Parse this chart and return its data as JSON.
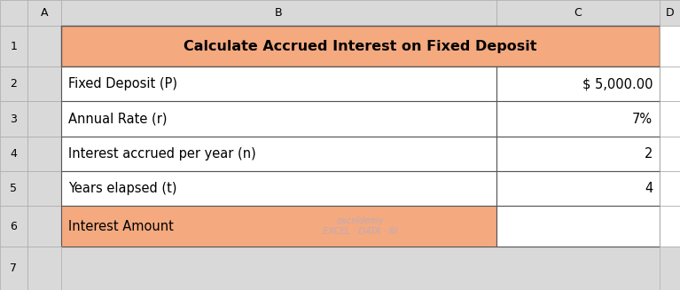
{
  "title": "Calculate Accrued Interest on Fixed Deposit",
  "rows": [
    {
      "label": "Fixed Deposit (P)",
      "value": "$ 5,000.00",
      "label_bg": "#FFFFFF",
      "value_bg": "#FFFFFF"
    },
    {
      "label": "Annual Rate (r)",
      "value": "7%",
      "label_bg": "#FFFFFF",
      "value_bg": "#FFFFFF"
    },
    {
      "label": "Interest accrued per year (n)",
      "value": "2",
      "label_bg": "#FFFFFF",
      "value_bg": "#FFFFFF"
    },
    {
      "label": "Years elapsed (t)",
      "value": "4",
      "label_bg": "#FFFFFF",
      "value_bg": "#FFFFFF"
    },
    {
      "label": "Interest Amount",
      "value": "",
      "label_bg": "#F4A97F",
      "value_bg": "#FFFFFF"
    }
  ],
  "header_bg": "#F4A97F",
  "header_text_color": "#000000",
  "row_text_color": "#000000",
  "col_header_bg": "#D9D9D9",
  "col_header_text": "#000000",
  "outer_bg": "#D9D9D9",
  "col_labels": [
    "A",
    "B",
    "C",
    "D"
  ],
  "row_labels": [
    "1",
    "2",
    "3",
    "4",
    "5",
    "6",
    "7"
  ],
  "watermark": "exceldemy\nEXCEL · DATA · BI",
  "border_color": "#000000",
  "col_header_border": "#AAAAAA",
  "grid_color": "#555555"
}
